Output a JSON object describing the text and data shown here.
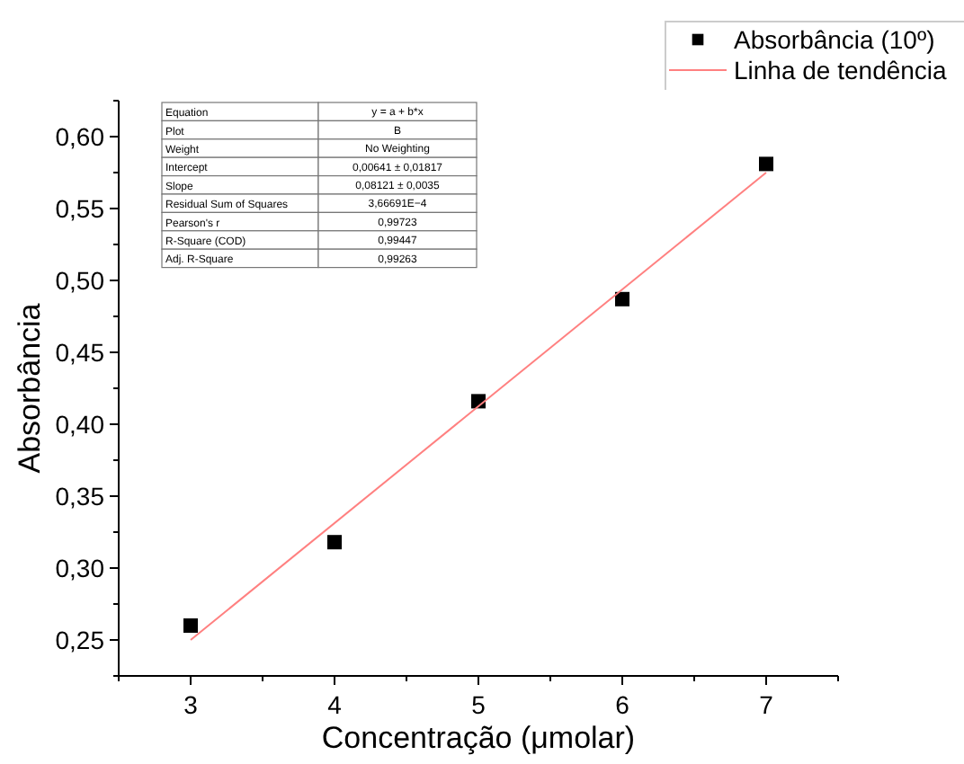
{
  "chart_data": {
    "type": "scatter",
    "xlabel": "Concentração (μmolar)",
    "ylabel": "Absorbância",
    "x": [
      3,
      4,
      5,
      6,
      7
    ],
    "series": [
      {
        "name": "Absorbância (10º)",
        "color": "#000000",
        "marker": "square",
        "values": [
          0.26,
          0.318,
          0.416,
          0.487,
          0.581
        ]
      },
      {
        "name": "Linha de tendência",
        "type": "line",
        "color": "#ff8080",
        "x": [
          3,
          7
        ],
        "values": [
          0.25,
          0.575
        ]
      }
    ],
    "xlim": [
      2.5,
      7.5
    ],
    "xticks": [
      3,
      4,
      5,
      6,
      7
    ],
    "ylim": [
      0.225,
      0.625
    ],
    "yticks": [
      {
        "value": 0.25,
        "label": "0,25"
      },
      {
        "value": 0.3,
        "label": "0,30"
      },
      {
        "value": 0.35,
        "label": "0,35"
      },
      {
        "value": 0.4,
        "label": "0,40"
      },
      {
        "value": 0.45,
        "label": "0,45"
      },
      {
        "value": 0.5,
        "label": "0,50"
      },
      {
        "value": 0.55,
        "label": "0,55"
      },
      {
        "value": 0.6,
        "label": "0,60"
      }
    ],
    "legend": "top right",
    "grid": false,
    "annotations": [
      "Equation",
      "y = a + b*x",
      "Plot",
      "B",
      "Weight",
      "No Weighting",
      "Intercept",
      "0,00641 ± 0,01817",
      "Slope",
      "0,08121 ± 0,0035",
      "Residual Sum of Squares",
      "3,66691E−4",
      "Pearson's r",
      "0,99723",
      "R-Square (COD)",
      "0,99447",
      "Adj. R-Square",
      "0,99263"
    ]
  }
}
